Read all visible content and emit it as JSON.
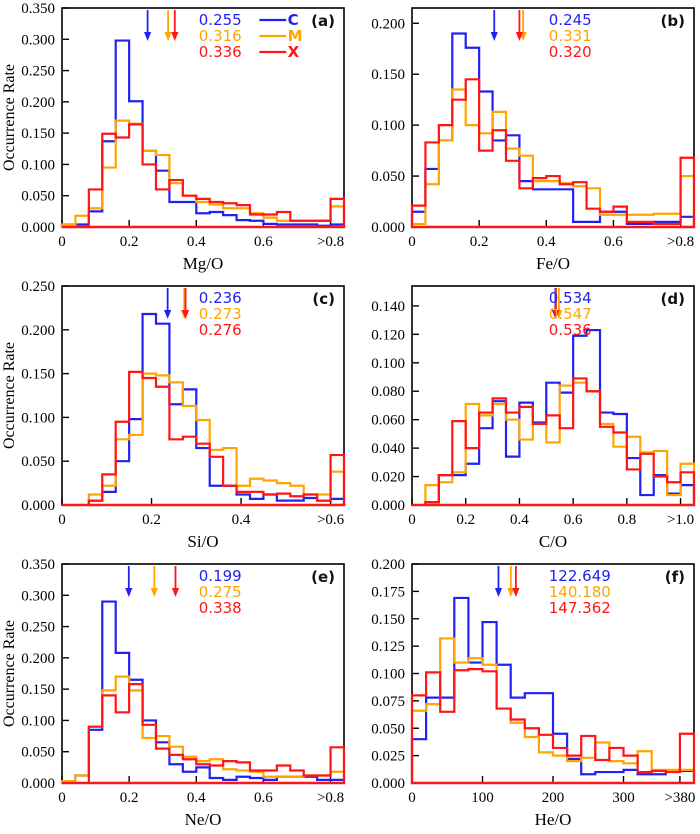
{
  "figure": {
    "ylabel": "Occurrence Rate",
    "axis_color": "#000000",
    "series_colors": {
      "C": "#2222f0",
      "M": "#ffa502",
      "X": "#ff1515"
    },
    "legend_labels": [
      "C",
      "M",
      "X"
    ]
  },
  "chart_data": [
    {
      "id": "a",
      "type": "histogram-step",
      "panel_label": "(a)",
      "xlabel": "Mg/O",
      "ylabel": "Occurrence Rate",
      "xlim": [
        0,
        0.84
      ],
      "ylim": [
        0,
        0.35
      ],
      "bin_width": 0.04,
      "xticks": [
        [
          0,
          "0"
        ],
        [
          0.2,
          "0.2"
        ],
        [
          0.4,
          "0.4"
        ],
        [
          0.6,
          "0.6"
        ],
        [
          0.8,
          ">0.8"
        ]
      ],
      "ytick_step": 0.05,
      "ytick_max": 0.35,
      "ytick_decimals": 3,
      "show_series_legend": true,
      "means": [
        {
          "name": "C",
          "value": 0.255,
          "label": "0.255"
        },
        {
          "name": "M",
          "value": 0.316,
          "label": "0.316"
        },
        {
          "name": "X",
          "value": 0.336,
          "label": "0.336"
        }
      ],
      "series": [
        {
          "name": "C",
          "values": [
            0.004,
            0.004,
            0.025,
            0.137,
            0.298,
            0.201,
            0.122,
            0.09,
            0.04,
            0.04,
            0.022,
            0.024,
            0.019,
            0.011,
            0.01,
            0.005,
            0.004,
            0.004,
            0.004,
            0.002,
            0.004
          ]
        },
        {
          "name": "M",
          "values": [
            0.004,
            0.018,
            0.03,
            0.095,
            0.17,
            0.165,
            0.122,
            0.115,
            0.07,
            0.05,
            0.04,
            0.036,
            0.03,
            0.03,
            0.022,
            0.015,
            0.01,
            0.01,
            0.01,
            0.01,
            0.033
          ]
        },
        {
          "name": "X",
          "values": [
            0.0,
            0.0,
            0.06,
            0.149,
            0.143,
            0.164,
            0.1,
            0.06,
            0.075,
            0.05,
            0.045,
            0.04,
            0.038,
            0.035,
            0.02,
            0.02,
            0.024,
            0.01,
            0.01,
            0.01,
            0.045
          ]
        }
      ]
    },
    {
      "id": "b",
      "type": "histogram-step",
      "panel_label": "(b)",
      "xlabel": "Fe/O",
      "ylabel": "",
      "xlim": [
        0,
        0.84
      ],
      "ylim": [
        0,
        0.215
      ],
      "bin_width": 0.04,
      "xticks": [
        [
          0,
          "0"
        ],
        [
          0.2,
          "0.2"
        ],
        [
          0.4,
          "0.4"
        ],
        [
          0.6,
          "0.6"
        ],
        [
          0.8,
          ">0.8"
        ]
      ],
      "ytick_step": 0.05,
      "ytick_max": 0.2,
      "ytick_decimals": 3,
      "show_series_legend": false,
      "means": [
        {
          "name": "C",
          "value": 0.245,
          "label": "0.245"
        },
        {
          "name": "M",
          "value": 0.331,
          "label": "0.331"
        },
        {
          "name": "X",
          "value": 0.32,
          "label": "0.320"
        }
      ],
      "series": [
        {
          "name": "C",
          "values": [
            0.015,
            0.057,
            0.085,
            0.19,
            0.176,
            0.133,
            0.085,
            0.09,
            0.045,
            0.037,
            0.037,
            0.037,
            0.005,
            0.005,
            0.015,
            0.015,
            0.003,
            0.003,
            0.005,
            0.005,
            0.01
          ]
        },
        {
          "name": "M",
          "values": [
            0.003,
            0.042,
            0.085,
            0.135,
            0.1,
            0.092,
            0.113,
            0.077,
            0.07,
            0.045,
            0.045,
            0.043,
            0.04,
            0.038,
            0.012,
            0.012,
            0.012,
            0.012,
            0.013,
            0.013,
            0.05
          ]
        },
        {
          "name": "X",
          "values": [
            0.021,
            0.083,
            0.1,
            0.125,
            0.145,
            0.075,
            0.095,
            0.065,
            0.038,
            0.048,
            0.05,
            0.042,
            0.044,
            0.018,
            0.015,
            0.02,
            0.005,
            0.005,
            0.003,
            0.003,
            0.068
          ]
        }
      ]
    },
    {
      "id": "c",
      "type": "histogram-step",
      "panel_label": "(c)",
      "xlabel": "Si/O",
      "ylabel": "Occurrence Rate",
      "xlim": [
        0,
        0.63
      ],
      "ylim": [
        0,
        0.25
      ],
      "bin_width": 0.03,
      "xticks": [
        [
          0,
          "0"
        ],
        [
          0.2,
          "0.2"
        ],
        [
          0.4,
          "0.4"
        ],
        [
          0.6,
          ">0.6"
        ]
      ],
      "ytick_step": 0.05,
      "ytick_max": 0.25,
      "ytick_decimals": 3,
      "show_series_legend": false,
      "means": [
        {
          "name": "C",
          "value": 0.236,
          "label": "0.236"
        },
        {
          "name": "M",
          "value": 0.273,
          "label": "0.273"
        },
        {
          "name": "X",
          "value": 0.276,
          "label": "0.276"
        }
      ],
      "series": [
        {
          "name": "C",
          "values": [
            0.0,
            0.0,
            0.005,
            0.015,
            0.05,
            0.098,
            0.218,
            0.207,
            0.115,
            0.132,
            0.065,
            0.022,
            0.022,
            0.012,
            0.007,
            0.012,
            0.005,
            0.005,
            0.008,
            0.005,
            0.007
          ]
        },
        {
          "name": "M",
          "values": [
            0.0,
            0.0,
            0.012,
            0.022,
            0.075,
            0.08,
            0.15,
            0.148,
            0.14,
            0.113,
            0.097,
            0.063,
            0.065,
            0.022,
            0.03,
            0.028,
            0.025,
            0.022,
            0.012,
            0.012,
            0.038
          ]
        },
        {
          "name": "X",
          "values": [
            0.0,
            0.0,
            0.005,
            0.035,
            0.095,
            0.152,
            0.145,
            0.135,
            0.075,
            0.078,
            0.07,
            0.055,
            0.022,
            0.015,
            0.015,
            0.012,
            0.013,
            0.01,
            0.012,
            0.005,
            0.057
          ]
        }
      ]
    },
    {
      "id": "d",
      "type": "histogram-step",
      "panel_label": "(d)",
      "xlabel": "C/O",
      "ylabel": "",
      "xlim": [
        0,
        1.05
      ],
      "ylim": [
        0,
        0.154
      ],
      "bin_width": 0.05,
      "xticks": [
        [
          0,
          "0"
        ],
        [
          0.2,
          "0.2"
        ],
        [
          0.4,
          "0.4"
        ],
        [
          0.6,
          "0.6"
        ],
        [
          0.8,
          "0.8"
        ],
        [
          1.0,
          ">1.0"
        ]
      ],
      "ytick_step": 0.02,
      "ytick_max": 0.14,
      "ytick_decimals": 3,
      "show_series_legend": false,
      "means": [
        {
          "name": "C",
          "value": 0.534,
          "label": "0.534"
        },
        {
          "name": "M",
          "value": 0.547,
          "label": "0.547"
        },
        {
          "name": "X",
          "value": 0.536,
          "label": "0.536"
        }
      ],
      "series": [
        {
          "name": "C",
          "values": [
            0.0,
            0.002,
            0.021,
            0.021,
            0.029,
            0.054,
            0.073,
            0.034,
            0.072,
            0.058,
            0.086,
            0.079,
            0.119,
            0.123,
            0.065,
            0.064,
            0.033,
            0.007,
            0.021,
            0.008,
            0.014
          ]
        },
        {
          "name": "M",
          "values": [
            0.0,
            0.014,
            0.016,
            0.023,
            0.071,
            0.063,
            0.071,
            0.06,
            0.046,
            0.057,
            0.044,
            0.084,
            0.086,
            0.08,
            0.057,
            0.041,
            0.048,
            0.037,
            0.038,
            0.007,
            0.029
          ]
        },
        {
          "name": "X",
          "values": [
            0.0,
            0.002,
            0.021,
            0.059,
            0.04,
            0.065,
            0.075,
            0.065,
            0.069,
            0.057,
            0.063,
            0.054,
            0.089,
            0.08,
            0.055,
            0.051,
            0.025,
            0.036,
            0.02,
            0.016,
            0.023
          ]
        }
      ]
    },
    {
      "id": "e",
      "type": "histogram-step",
      "panel_label": "(e)",
      "xlabel": "Ne/O",
      "ylabel": "Occurrence Rate",
      "xlim": [
        0,
        0.84
      ],
      "ylim": [
        0,
        0.35
      ],
      "bin_width": 0.04,
      "xticks": [
        [
          0,
          "0"
        ],
        [
          0.2,
          "0.2"
        ],
        [
          0.4,
          "0.4"
        ],
        [
          0.6,
          "0.6"
        ],
        [
          0.8,
          ">0.8"
        ]
      ],
      "ytick_step": 0.05,
      "ytick_max": 0.35,
      "ytick_decimals": 3,
      "show_series_legend": false,
      "means": [
        {
          "name": "C",
          "value": 0.199,
          "label": "0.199"
        },
        {
          "name": "M",
          "value": 0.275,
          "label": "0.275"
        },
        {
          "name": "X",
          "value": 0.338,
          "label": "0.338"
        }
      ],
      "series": [
        {
          "name": "C",
          "values": [
            0.003,
            0.012,
            0.085,
            0.29,
            0.208,
            0.165,
            0.1,
            0.065,
            0.03,
            0.018,
            0.025,
            0.008,
            0.005,
            0.01,
            0.008,
            0.005,
            0.01,
            0.01,
            0.01,
            0.005,
            0.005
          ]
        },
        {
          "name": "M",
          "values": [
            0.003,
            0.012,
            0.09,
            0.148,
            0.17,
            0.148,
            0.072,
            0.075,
            0.058,
            0.042,
            0.035,
            0.038,
            0.022,
            0.02,
            0.018,
            0.01,
            0.01,
            0.01,
            0.012,
            0.012,
            0.018
          ]
        },
        {
          "name": "X",
          "values": [
            0.0,
            0.0,
            0.09,
            0.14,
            0.113,
            0.158,
            0.093,
            0.055,
            0.045,
            0.038,
            0.03,
            0.028,
            0.035,
            0.033,
            0.02,
            0.02,
            0.028,
            0.02,
            0.012,
            0.012,
            0.057
          ]
        }
      ]
    },
    {
      "id": "f",
      "type": "histogram-step",
      "panel_label": "(f)",
      "xlabel": "He/O",
      "ylabel": "",
      "xlim": [
        0,
        400
      ],
      "ylim": [
        0,
        0.2
      ],
      "bin_width": 20,
      "xticks": [
        [
          0,
          "0"
        ],
        [
          100,
          "100"
        ],
        [
          200,
          "200"
        ],
        [
          300,
          "300"
        ],
        [
          380,
          ">380"
        ]
      ],
      "ytick_step": 0.025,
      "ytick_max": 0.2,
      "ytick_decimals": 3,
      "show_series_legend": false,
      "means": [
        {
          "name": "C",
          "value": 122.649,
          "label": "122.649"
        },
        {
          "name": "M",
          "value": 140.18,
          "label": "140.180"
        },
        {
          "name": "X",
          "value": 147.362,
          "label": "147.362"
        }
      ],
      "series": [
        {
          "name": "C",
          "values": [
            0.04,
            0.078,
            0.078,
            0.169,
            0.11,
            0.147,
            0.108,
            0.078,
            0.082,
            0.082,
            0.045,
            0.022,
            0.008,
            0.01,
            0.01,
            0.012,
            0.008,
            0.008,
            0.011,
            0.011
          ]
        },
        {
          "name": "M",
          "values": [
            0.066,
            0.072,
            0.132,
            0.11,
            0.114,
            0.108,
            0.068,
            0.055,
            0.042,
            0.028,
            0.025,
            0.02,
            0.023,
            0.037,
            0.02,
            0.018,
            0.029,
            0.012,
            0.012,
            0.012
          ]
        },
        {
          "name": "X",
          "values": [
            0.08,
            0.101,
            0.065,
            0.103,
            0.104,
            0.102,
            0.068,
            0.058,
            0.05,
            0.044,
            0.032,
            0.025,
            0.043,
            0.021,
            0.032,
            0.025,
            0.01,
            0.011,
            0.01,
            0.045
          ]
        }
      ]
    }
  ]
}
